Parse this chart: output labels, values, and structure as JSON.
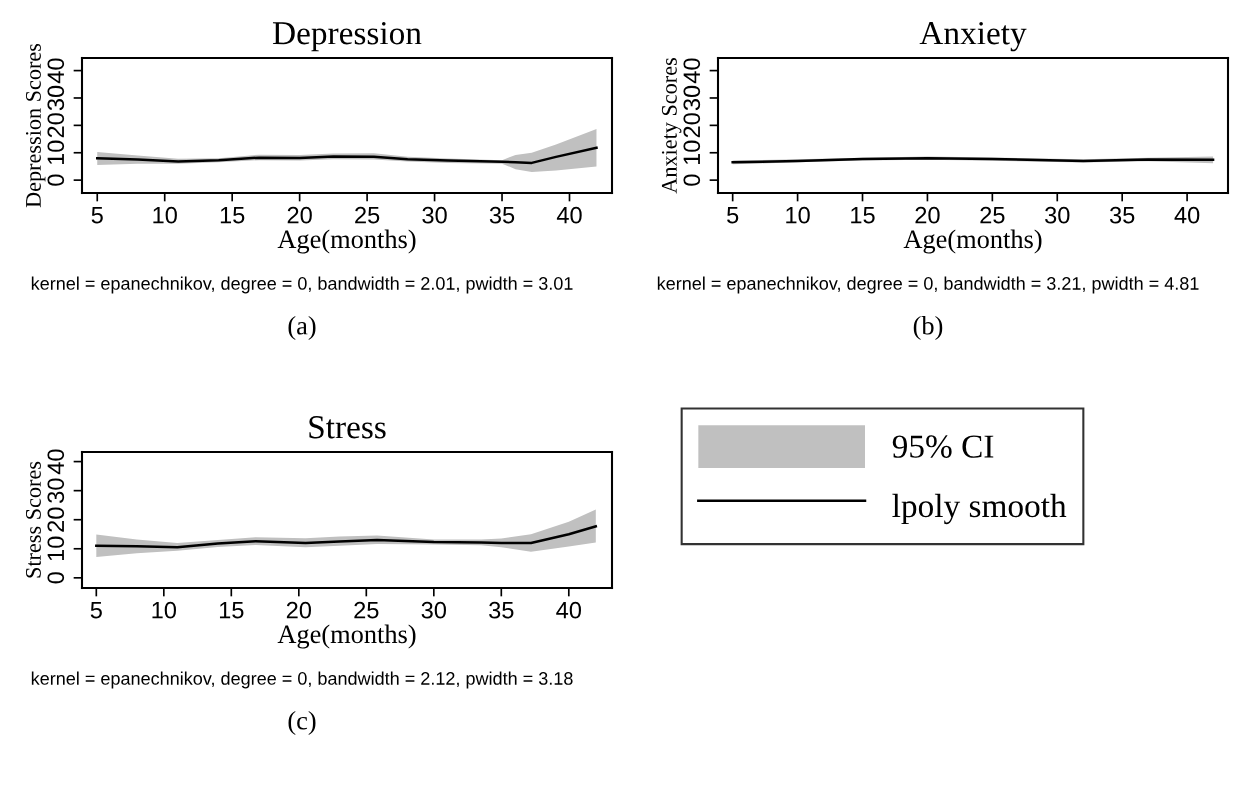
{
  "chart_data": [
    {
      "type": "line",
      "title": "Depression",
      "xlabel": "Age(months)",
      "ylabel": "Depression Scores",
      "xlim": [
        3.87,
        43.15
      ],
      "ylim": [
        -4.7,
        44.6
      ],
      "xticks": [
        5,
        10,
        15,
        20,
        25,
        30,
        35,
        40
      ],
      "yticks": [
        0,
        10,
        20,
        30,
        40
      ],
      "grid": false,
      "legend": false,
      "annotations": [
        "kernel = epanechnikov, degree = 0, bandwidth = 2.01, pwidth = 3.01",
        "(a)"
      ],
      "series": [
        {
          "color": "#000000",
          "x": [
            5,
            8,
            11,
            14,
            17,
            20,
            22.5,
            25.5,
            28,
            31,
            35,
            36,
            37.2,
            39,
            42
          ],
          "values": [
            8,
            7.5,
            6.8,
            7.3,
            8.2,
            8.1,
            8.6,
            8.5,
            7.6,
            7.2,
            6.7,
            6.5,
            6.3,
            8.5,
            11.8
          ],
          "lower": [
            5.5,
            6,
            6,
            6.5,
            7.3,
            7.2,
            7.6,
            7.5,
            6.8,
            6.3,
            6,
            4,
            3,
            3.5,
            5
          ],
          "upper": [
            10.3,
            9,
            7.8,
            8,
            9.3,
            9.2,
            9.7,
            9.8,
            8.5,
            7.9,
            7.3,
            9.2,
            10,
            13,
            18.7
          ]
        }
      ]
    },
    {
      "type": "line",
      "title": "Anxiety",
      "xlabel": "Age(months)",
      "ylabel": "Anxiety Scores",
      "xlim": [
        3.87,
        43.15
      ],
      "ylim": [
        -4.7,
        44.6
      ],
      "xticks": [
        5,
        10,
        15,
        20,
        25,
        30,
        35,
        40
      ],
      "yticks": [
        0,
        10,
        20,
        30,
        40
      ],
      "grid": false,
      "legend": false,
      "annotations": [
        "kernel = epanechnikov, degree = 0, bandwidth = 3.21, pwidth = 4.81",
        "(b)"
      ],
      "series": [
        {
          "color": "#000000",
          "x": [
            5,
            10,
            15,
            20,
            25,
            32,
            37,
            42
          ],
          "values": [
            6.5,
            7,
            7.7,
            8,
            7.7,
            7,
            7.5,
            7.4
          ],
          "lower": [
            5.8,
            6.5,
            7.2,
            7.4,
            7.1,
            6.4,
            6.9,
            6.2
          ],
          "upper": [
            7.2,
            7.6,
            8.2,
            8.6,
            8.3,
            7.6,
            8.2,
            8.6
          ]
        }
      ]
    },
    {
      "type": "line",
      "title": "Stress",
      "xlabel": "Age(months)",
      "ylabel": "Stress Scores",
      "xlim": [
        3.94,
        43.2
      ],
      "ylim": [
        -3.5,
        43.3
      ],
      "xticks": [
        5,
        10,
        15,
        20,
        25,
        30,
        35,
        40
      ],
      "yticks": [
        0,
        10,
        20,
        30,
        40
      ],
      "grid": false,
      "legend": "right",
      "annotations": [
        "kernel = epanechnikov, degree = 0, bandwidth = 2.12, pwidth = 3.18",
        "(c)",
        "95% CI"
      ],
      "series": [
        {
          "name": "lpoly smooth",
          "color": "#000000",
          "x": [
            5,
            8,
            11,
            14,
            16.8,
            20.5,
            23,
            25.8,
            30,
            33.5,
            35,
            37.2,
            40,
            42
          ],
          "values": [
            11,
            10.9,
            10.5,
            11.8,
            12.6,
            12,
            12.5,
            13,
            12.3,
            12.2,
            12,
            12,
            15,
            17.7
          ],
          "lower": [
            7.2,
            8.5,
            9.3,
            10.6,
            11.3,
            10.5,
            11,
            11.6,
            11.5,
            11.2,
            10.5,
            9,
            10.8,
            12.2
          ],
          "upper": [
            14.9,
            13.2,
            12,
            13,
            14,
            13.6,
            14.2,
            14.6,
            13.2,
            13.2,
            13.5,
            15,
            19.3,
            23.5
          ]
        }
      ]
    }
  ]
}
